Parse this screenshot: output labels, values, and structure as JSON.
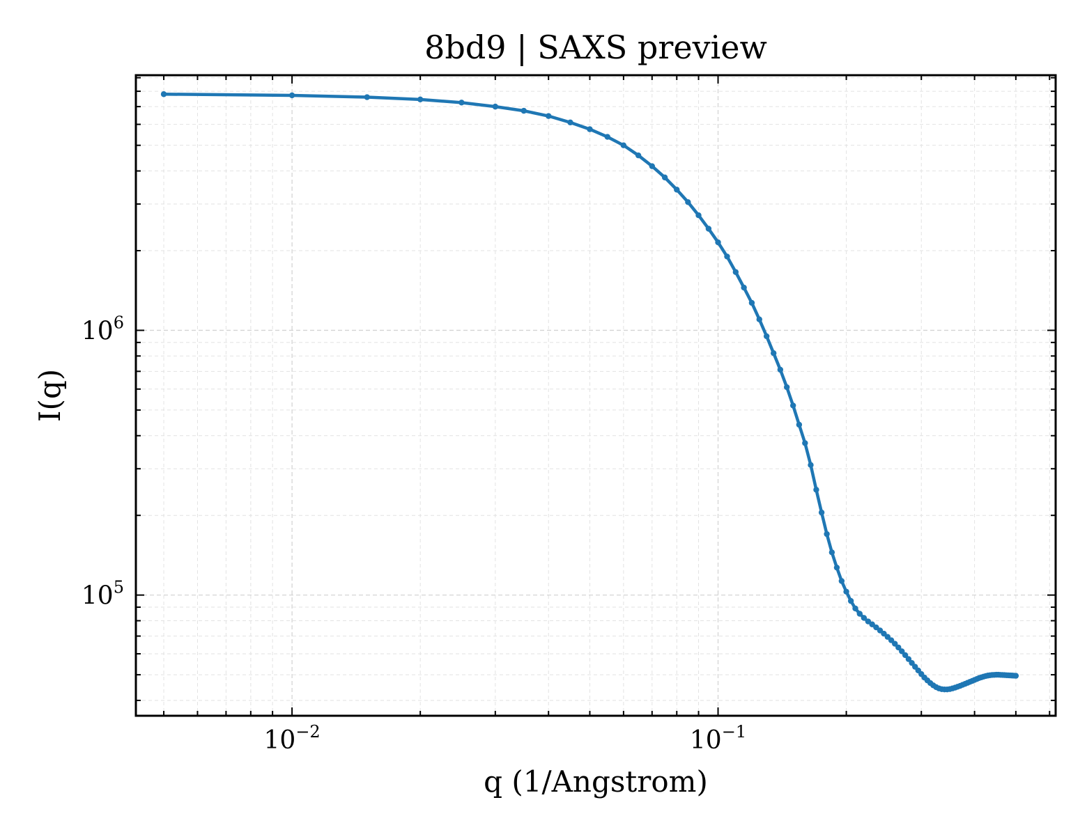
{
  "chart_data": {
    "type": "line",
    "title": "8bd9 | SAXS preview",
    "xlabel": "q (1/Angstrom)",
    "ylabel": "I(q)",
    "xscale": "log",
    "yscale": "log",
    "xlim": [
      0.0043,
      0.62
    ],
    "ylim": [
      35000,
      9200000
    ],
    "grid": true,
    "marker": "dot",
    "color": "#1f77b4",
    "xticks": [
      {
        "value": 0.01,
        "base": "10",
        "exponent": "−2"
      },
      {
        "value": 0.1,
        "base": "10",
        "exponent": "−1"
      }
    ],
    "yticks": [
      {
        "value": 100000,
        "base": "10",
        "exponent": "5"
      },
      {
        "value": 1000000,
        "base": "10",
        "exponent": "6"
      }
    ],
    "series": [
      {
        "x": [
          0.005,
          0.01,
          0.015,
          0.02,
          0.025,
          0.03,
          0.035,
          0.04,
          0.045,
          0.05,
          0.055,
          0.06,
          0.065,
          0.07,
          0.075,
          0.08,
          0.085,
          0.09,
          0.095,
          0.1,
          0.105,
          0.11,
          0.115,
          0.12,
          0.125,
          0.13,
          0.135,
          0.14,
          0.145,
          0.15,
          0.155,
          0.16,
          0.165,
          0.17,
          0.175,
          0.18,
          0.185,
          0.19,
          0.195,
          0.2,
          0.205,
          0.21,
          0.215,
          0.22,
          0.225,
          0.23,
          0.235,
          0.24,
          0.245,
          0.25,
          0.255,
          0.26,
          0.265,
          0.27,
          0.275,
          0.28,
          0.285,
          0.29,
          0.295,
          0.3,
          0.305,
          0.31,
          0.315,
          0.32,
          0.325,
          0.33,
          0.335,
          0.34,
          0.345,
          0.35,
          0.355,
          0.36,
          0.365,
          0.37,
          0.375,
          0.38,
          0.385,
          0.39,
          0.395,
          0.4,
          0.405,
          0.41,
          0.415,
          0.42,
          0.425,
          0.43,
          0.435,
          0.44,
          0.445,
          0.45,
          0.455,
          0.46,
          0.465,
          0.47,
          0.475,
          0.48,
          0.485,
          0.49,
          0.495,
          0.5
        ],
        "y": [
          7800000,
          7720000,
          7600000,
          7450000,
          7250000,
          7000000,
          6750000,
          6450000,
          6100000,
          5750000,
          5380000,
          5000000,
          4580000,
          4170000,
          3780000,
          3400000,
          3050000,
          2720000,
          2420000,
          2150000,
          1900000,
          1660000,
          1450000,
          1270000,
          1100000,
          950000,
          820000,
          710000,
          610000,
          520000,
          440000,
          375000,
          310000,
          250000,
          205000,
          170000,
          145000,
          127000,
          113000,
          103000,
          95000,
          89000,
          85000,
          82000,
          79500,
          77500,
          75500,
          73500,
          71500,
          69500,
          67500,
          65500,
          63400,
          61300,
          59300,
          57300,
          55400,
          53600,
          51900,
          50300,
          48800,
          47600,
          46500,
          45600,
          44900,
          44400,
          44100,
          44000,
          44000,
          44150,
          44400,
          44700,
          45050,
          45400,
          45800,
          46200,
          46600,
          47000,
          47400,
          47800,
          48200,
          48600,
          48900,
          49200,
          49450,
          49650,
          49800,
          49900,
          49950,
          50000,
          50000,
          49950,
          49900,
          49850,
          49800,
          49750,
          49700,
          49650,
          49600,
          49550
        ]
      }
    ]
  }
}
